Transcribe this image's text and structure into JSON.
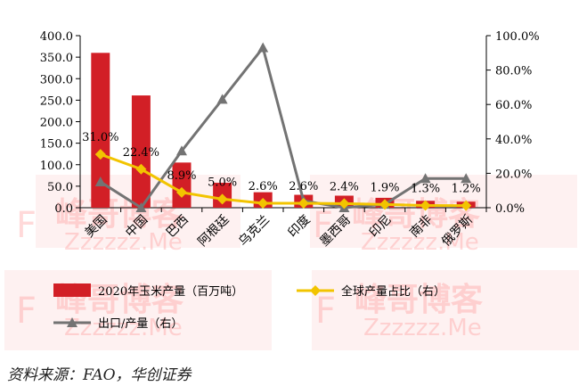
{
  "chart_data": {
    "type": "bar+line",
    "categories": [
      "美国",
      "中国",
      "巴西",
      "阿根廷",
      "乌克兰",
      "印度",
      "墨西哥",
      "印尼",
      "南非",
      "俄罗斯"
    ],
    "bar_series": {
      "name": "2020年玉米产量（百万吨）",
      "values": [
        360,
        261,
        105,
        58,
        36,
        30,
        28,
        23,
        16,
        14
      ],
      "color": "#d21f26"
    },
    "line_series": [
      {
        "name": "全球产量占比（右）",
        "axis": "right",
        "values": [
          31.0,
          22.4,
          8.9,
          5.0,
          2.6,
          2.6,
          2.4,
          1.9,
          1.3,
          1.2
        ],
        "labels": [
          "31.0%",
          "22.4%",
          "8.9%",
          "5.0%",
          "2.6%",
          "2.6%",
          "2.4%",
          "1.9%",
          "1.3%",
          "1.2%"
        ],
        "color": "#f2c400",
        "marker": "diamond"
      },
      {
        "name": "出口/产量（右）",
        "axis": "right",
        "values": [
          15,
          0,
          33,
          63,
          93,
          4,
          0,
          2,
          17,
          17
        ],
        "color": "#737373",
        "marker": "triangle"
      }
    ],
    "left_axis": {
      "min": 0,
      "max": 400,
      "step": 50,
      "tick_labels": [
        "0.0",
        "50.0",
        "100.0",
        "150.0",
        "200.0",
        "250.0",
        "300.0",
        "350.0",
        "400.0"
      ]
    },
    "right_axis": {
      "min": 0,
      "max": 100,
      "step": 20,
      "tick_labels": [
        "0.0%",
        "20.0%",
        "40.0%",
        "60.0%",
        "80.0%",
        "100.0%"
      ]
    },
    "legend_placement": "bottom",
    "grid": false
  },
  "source": "资料来源：FAO，华创证券",
  "watermark": {
    "big": "峰哥博客",
    "small": "Zzzzzz.Me",
    "letter": "F",
    "color": "#ff7a7a"
  }
}
